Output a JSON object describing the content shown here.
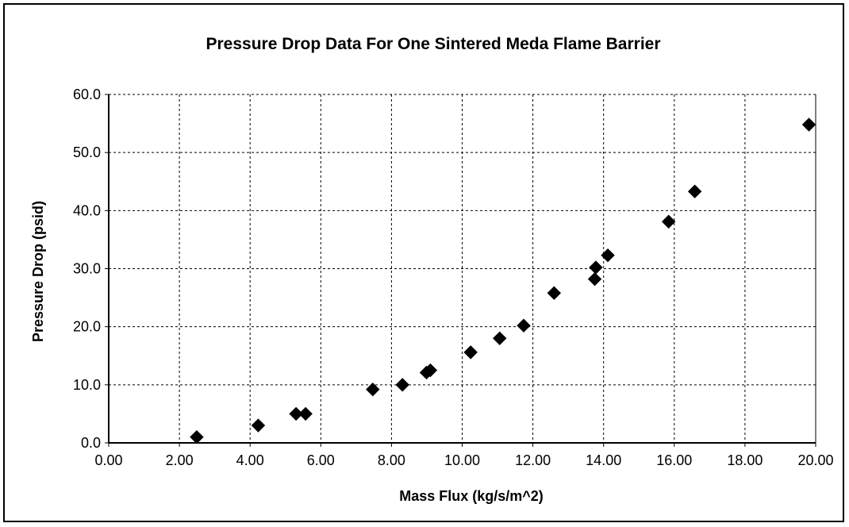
{
  "chart_data": {
    "type": "scatter",
    "title": "Pressure Drop Data For One Sintered Meda Flame Barrier",
    "xlabel": "Mass Flux (kg/s/m^2)",
    "ylabel": "Pressure Drop (psid)",
    "xlim": [
      0,
      20
    ],
    "ylim": [
      0,
      60
    ],
    "x_ticks": [
      "0.00",
      "2.00",
      "4.00",
      "6.00",
      "8.00",
      "10.00",
      "12.00",
      "14.00",
      "16.00",
      "18.00",
      "20.00"
    ],
    "y_ticks": [
      "0.0",
      "10.0",
      "20.0",
      "30.0",
      "40.0",
      "50.0",
      "60.0"
    ],
    "grid": true,
    "legend": "none",
    "marker_color": "#000000",
    "series": [
      {
        "marker": "diamond",
        "points": [
          {
            "x": 2.49,
            "y": 1.0
          },
          {
            "x": 4.23,
            "y": 3.0
          },
          {
            "x": 5.3,
            "y": 5.0
          },
          {
            "x": 5.57,
            "y": 5.0
          },
          {
            "x": 7.47,
            "y": 9.2
          },
          {
            "x": 8.31,
            "y": 10.0
          },
          {
            "x": 8.99,
            "y": 12.1
          },
          {
            "x": 9.1,
            "y": 12.5
          },
          {
            "x": 10.24,
            "y": 15.6
          },
          {
            "x": 11.06,
            "y": 18.0
          },
          {
            "x": 11.74,
            "y": 20.2
          },
          {
            "x": 12.6,
            "y": 25.8
          },
          {
            "x": 13.75,
            "y": 28.2
          },
          {
            "x": 13.78,
            "y": 30.2
          },
          {
            "x": 14.12,
            "y": 32.3
          },
          {
            "x": 15.84,
            "y": 38.1
          },
          {
            "x": 16.58,
            "y": 43.3
          },
          {
            "x": 19.81,
            "y": 54.8
          }
        ]
      }
    ]
  }
}
